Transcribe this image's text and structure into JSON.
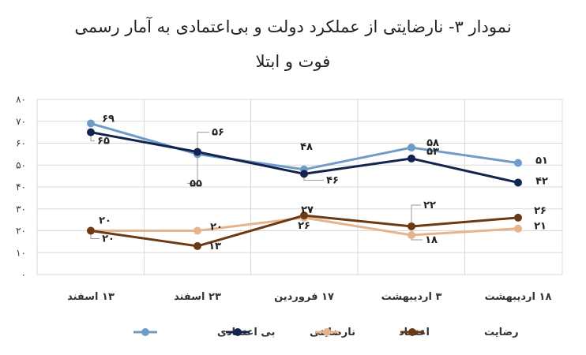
{
  "chart_data": {
    "type": "line",
    "title_lines": [
      "نمودار ۳- نارضایتی از عملکرد دولت و بی‌اعتمادی به آمار رسمی",
      "فوت و ابتلا"
    ],
    "categories": [
      "۱۳ اسفند",
      "۲۳ اسفند",
      "۱۷ فروردین",
      "۳ اردیبهشت",
      "۱۸ اردیبهشت"
    ],
    "y_ticks": [
      "۰",
      "۱۰",
      "۲۰",
      "۳۰",
      "۴۰",
      "۵۰",
      "۶۰",
      "۷۰",
      "۸۰"
    ],
    "ylim": [
      0,
      80
    ],
    "grid": true,
    "legend_position": "bottom",
    "series": [
      {
        "name": "بی اعتمادی",
        "color": "#6f9cc6",
        "values": [
          69,
          55,
          48,
          58,
          51
        ],
        "labels": [
          "۶۹",
          "۵۵",
          "۴۸",
          "۵۸",
          "۵۱"
        ]
      },
      {
        "name": "نارضایتی",
        "color": "#13234f",
        "values": [
          65,
          56,
          46,
          53,
          42
        ],
        "labels": [
          "۶۵",
          "۵۶",
          "۴۶",
          "۵۳",
          "۴۲"
        ]
      },
      {
        "name": "اعتماد",
        "color": "#e5b48d",
        "values": [
          20,
          20,
          26,
          18,
          21
        ],
        "labels": [
          "۲۰",
          "۲۰",
          "۲۶",
          "۱۸",
          "۲۱"
        ]
      },
      {
        "name": "رضایت",
        "color": "#6b3a14",
        "values": [
          20,
          13,
          27,
          22,
          26
        ],
        "labels": [
          "۲۰",
          "۱۳",
          "۲۷",
          "۲۲",
          "۲۶"
        ]
      }
    ]
  }
}
